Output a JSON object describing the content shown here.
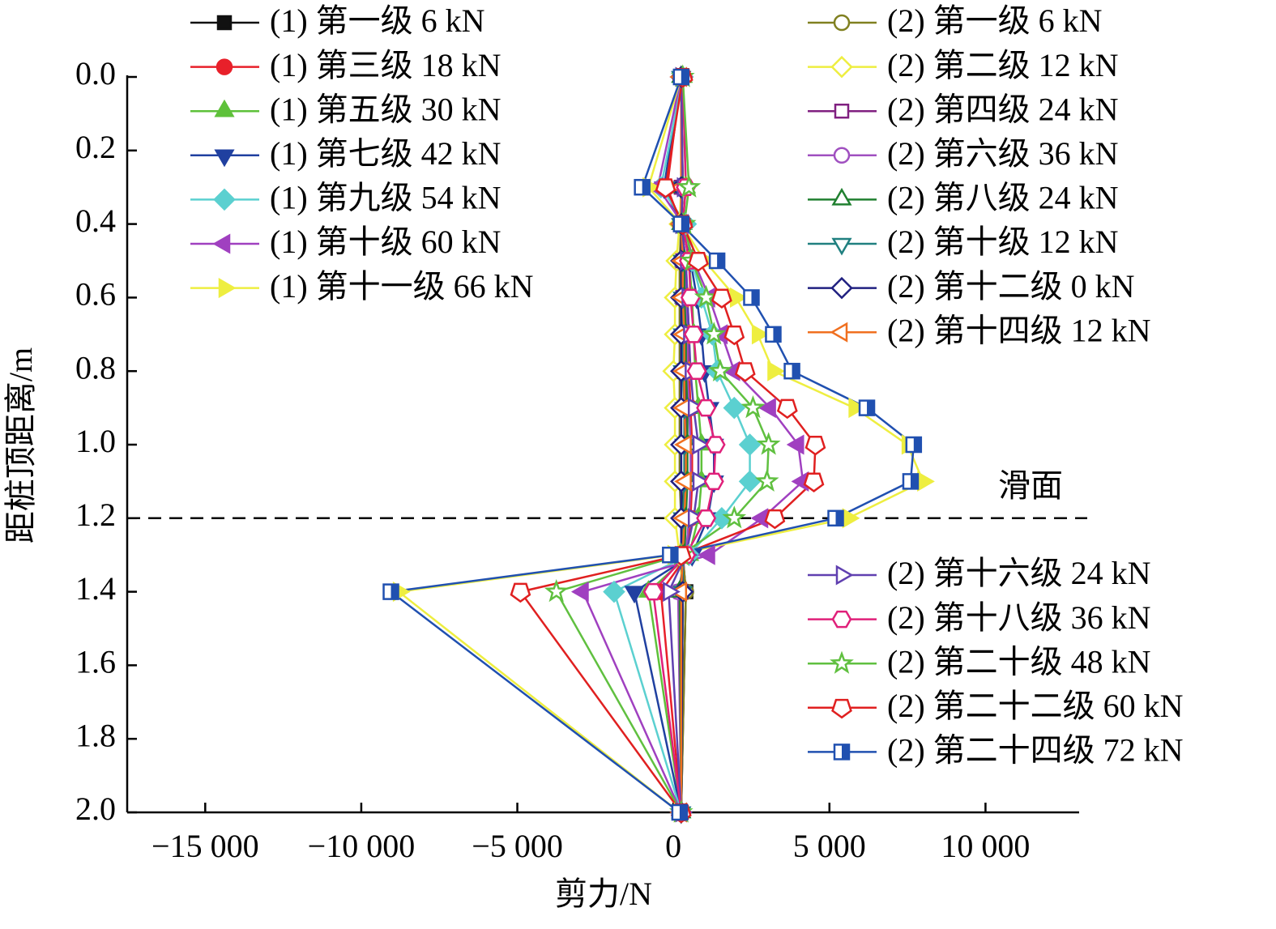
{
  "chart_data": {
    "type": "line",
    "x_label": "剪力/N",
    "y_label": "距桩顶距离/m",
    "y": [
      0,
      0.3,
      0.4,
      0.5,
      0.6,
      0.7,
      0.8,
      0.9,
      1.0,
      1.1,
      1.2,
      1.3,
      1.4,
      2.0
    ],
    "xlim": [
      -17500,
      13000
    ],
    "ylim": [
      0,
      2
    ],
    "y_inverted": true,
    "xticks": [
      {
        "value": -15000,
        "label": "−15 000"
      },
      {
        "value": -10000,
        "label": "−10 000"
      },
      {
        "value": -5000,
        "label": "−5 000"
      },
      0,
      {
        "value": 5000,
        "label": "5 000"
      },
      {
        "value": 10000,
        "label": "10 000"
      }
    ],
    "yticks": [
      {
        "value": 0,
        "label": "0.0"
      },
      0.2,
      0.4,
      0.6,
      0.8,
      {
        "value": 1,
        "label": "1.0"
      },
      1.2,
      1.4,
      1.6,
      1.8,
      {
        "value": 2,
        "label": "2.0"
      }
    ],
    "reference_line": {
      "y": 1.2,
      "label": "滑面"
    },
    "series": [
      {
        "name": "(1) 第一级 6 kN",
        "color": "#111111",
        "marker": "square",
        "filled": true,
        "values": [
          250,
          300,
          250,
          250,
          250,
          250,
          250,
          250,
          250,
          250,
          300,
          300,
          400,
          250
        ]
      },
      {
        "name": "(1) 第三级 18 kN",
        "color": "#e8202a",
        "marker": "circle",
        "filled": true,
        "values": [
          250,
          -200,
          250,
          400,
          450,
          500,
          500,
          550,
          600,
          600,
          550,
          450,
          -400,
          250
        ]
      },
      {
        "name": "(1) 第五级 30 kN",
        "color": "#5ec13a",
        "marker": "triangle-up",
        "filled": true,
        "values": [
          300,
          400,
          300,
          500,
          600,
          650,
          700,
          800,
          900,
          900,
          800,
          500,
          -800,
          250
        ]
      },
      {
        "name": "(1) 第七级 42 kN",
        "color": "#2040a0",
        "marker": "triangle-down",
        "filled": true,
        "values": [
          250,
          -300,
          250,
          550,
          750,
          900,
          1000,
          1150,
          1300,
          1300,
          1100,
          600,
          -1250,
          250
        ]
      },
      {
        "name": "(1) 第九级 54 kN",
        "color": "#5bd0d0",
        "marker": "diamond",
        "filled": true,
        "values": [
          300,
          -400,
          400,
          600,
          900,
          1250,
          1400,
          1950,
          2450,
          2450,
          1550,
          500,
          -1900,
          250
        ]
      },
      {
        "name": "(1) 第十级 60 kN",
        "color": "#a040c0",
        "marker": "triangle-left",
        "filled": true,
        "values": [
          250,
          -500,
          300,
          650,
          1150,
          1550,
          1950,
          3100,
          4000,
          4150,
          2850,
          1150,
          -2900,
          250
        ]
      },
      {
        "name": "(1) 第十一级 66 kN",
        "color": "#eeee40",
        "marker": "triangle-right",
        "filled": true,
        "values": [
          250,
          -800,
          250,
          1000,
          2000,
          2700,
          3200,
          5800,
          7500,
          8000,
          5600,
          0,
          -8800,
          200
        ]
      },
      {
        "name": "(2) 第一级 6 kN",
        "color": "#808020",
        "marker": "circle",
        "filled": false,
        "values": [
          250,
          250,
          250,
          200,
          200,
          200,
          200,
          200,
          200,
          200,
          250,
          300,
          400,
          250
        ]
      },
      {
        "name": "(2) 第二级 12 kN",
        "color": "#eeee40",
        "marker": "diamond",
        "filled": false,
        "values": [
          250,
          250,
          200,
          100,
          50,
          50,
          0,
          50,
          50,
          50,
          50,
          200,
          300,
          250
        ]
      },
      {
        "name": "(2) 第四级 24 kN",
        "color": "#802080",
        "marker": "square",
        "filled": false,
        "values": [
          250,
          250,
          250,
          300,
          300,
          350,
          350,
          400,
          400,
          400,
          400,
          350,
          250,
          250
        ]
      },
      {
        "name": "(2) 第六级 36 kN",
        "color": "#a050c0",
        "marker": "circle",
        "filled": false,
        "values": [
          250,
          250,
          250,
          350,
          400,
          450,
          450,
          500,
          550,
          550,
          500,
          400,
          150,
          250
        ]
      },
      {
        "name": "(2) 第八级 24 kN",
        "color": "#208030",
        "marker": "triangle-up",
        "filled": false,
        "values": [
          250,
          300,
          250,
          350,
          350,
          400,
          400,
          450,
          450,
          450,
          400,
          350,
          200,
          250
        ]
      },
      {
        "name": "(2) 第十级 12 kN",
        "color": "#208080",
        "marker": "triangle-down",
        "filled": false,
        "values": [
          250,
          250,
          250,
          300,
          300,
          300,
          300,
          350,
          350,
          350,
          300,
          300,
          300,
          250
        ]
      },
      {
        "name": "(2) 第十二级 0 kN",
        "color": "#202080",
        "marker": "diamond",
        "filled": false,
        "values": [
          250,
          250,
          250,
          250,
          250,
          250,
          250,
          250,
          250,
          250,
          250,
          250,
          300,
          250
        ]
      },
      {
        "name": "(2) 第十四级 12 kN",
        "color": "#f07020",
        "marker": "triangle-left",
        "filled": false,
        "values": [
          250,
          250,
          250,
          300,
          300,
          350,
          350,
          350,
          400,
          400,
          350,
          300,
          250,
          250
        ]
      },
      {
        "name": "(2) 第十六级 24 kN",
        "color": "#6040b0",
        "marker": "triangle-right",
        "filled": false,
        "values": [
          250,
          300,
          250,
          400,
          450,
          500,
          550,
          650,
          800,
          800,
          650,
          400,
          -150,
          250
        ]
      },
      {
        "name": "(2) 第十八级 36 kN",
        "color": "#e0207a",
        "marker": "hexagon",
        "filled": false,
        "values": [
          300,
          400,
          300,
          500,
          550,
          650,
          750,
          1050,
          1350,
          1300,
          1050,
          400,
          -650,
          250
        ]
      },
      {
        "name": "(2) 第二十级 48 kN",
        "color": "#60c040",
        "marker": "star",
        "filled": false,
        "values": [
          300,
          500,
          350,
          600,
          1050,
          1300,
          1500,
          2550,
          3050,
          3000,
          1950,
          250,
          -3750,
          250
        ]
      },
      {
        "name": "(2) 第二十二级 60 kN",
        "color": "#e02020",
        "marker": "pentagon",
        "filled": false,
        "values": [
          300,
          -250,
          300,
          800,
          1550,
          1950,
          2300,
          3650,
          4550,
          4500,
          3250,
          250,
          -4900,
          250
        ]
      },
      {
        "name": "(2) 第二十四级 72 kN",
        "color": "#2050b0",
        "marker": "half-square",
        "filled": false,
        "values": [
          250,
          -1000,
          250,
          1400,
          2500,
          3200,
          3800,
          6200,
          7700,
          7600,
          5200,
          -100,
          -9050,
          200
        ]
      }
    ]
  }
}
